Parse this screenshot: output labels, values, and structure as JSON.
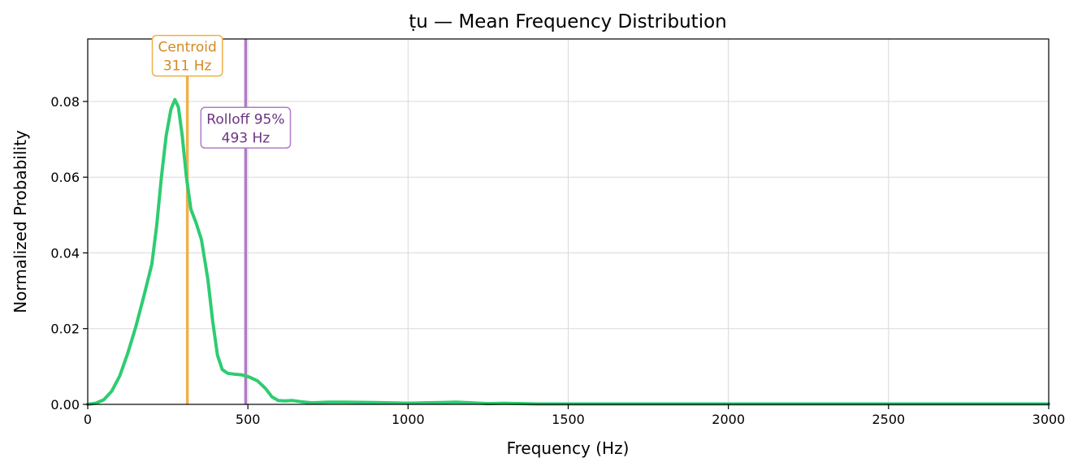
{
  "chart_data": {
    "type": "line",
    "title": "ṭu  —  Mean Frequency Distribution",
    "xlabel": "Frequency (Hz)",
    "ylabel": "Normalized Probability",
    "xlim": [
      0,
      3000
    ],
    "ylim": [
      0,
      0.0965
    ],
    "grid": true,
    "x_ticks": [
      0,
      500,
      1000,
      1500,
      2000,
      2500,
      3000
    ],
    "x_tick_labels": [
      "0",
      "500",
      "1000",
      "1500",
      "2000",
      "2500",
      "3000"
    ],
    "y_ticks": [
      0,
      0.02,
      0.04,
      0.06,
      0.08
    ],
    "y_tick_labels": [
      "0.00",
      "0.02",
      "0.04",
      "0.06",
      "0.08"
    ],
    "series": [
      {
        "color": "#2ecc71",
        "x": [
          0,
          25,
          50,
          75,
          100,
          125,
          150,
          175,
          200,
          215,
          230,
          245,
          260,
          272,
          283,
          295,
          308,
          322,
          338,
          355,
          375,
          390,
          405,
          420,
          437,
          455,
          480,
          505,
          530,
          555,
          575,
          595,
          615,
          640,
          665,
          700,
          750,
          800,
          900,
          1000,
          1050,
          1100,
          1150,
          1200,
          1250,
          1300,
          1400,
          1500,
          1600,
          2000,
          2500,
          3000
        ],
        "y": [
          0.0,
          0.0003,
          0.0012,
          0.0035,
          0.0075,
          0.0135,
          0.0205,
          0.0285,
          0.037,
          0.047,
          0.06,
          0.071,
          0.078,
          0.0805,
          0.0785,
          0.071,
          0.06,
          0.0515,
          0.048,
          0.0435,
          0.033,
          0.022,
          0.013,
          0.0092,
          0.0082,
          0.008,
          0.0078,
          0.0072,
          0.0062,
          0.0042,
          0.002,
          0.001,
          0.0009,
          0.001,
          0.0007,
          0.0004,
          0.0006,
          0.0006,
          0.0005,
          0.0003,
          0.0004,
          0.0005,
          0.0006,
          0.0004,
          0.0002,
          0.0003,
          0.0001,
          0.0001,
          0.0001,
          0.0001,
          0.0001,
          0.0001
        ]
      }
    ],
    "annotations": [
      {
        "name": "centroid",
        "x": 311,
        "line_color": "#f0b04a",
        "text_color": "#d4891f",
        "label_line1": "Centroid",
        "label_line2": "311 Hz",
        "label_y": 0.0925
      },
      {
        "name": "rolloff",
        "x": 493,
        "line_color": "#b07cc6",
        "text_color": "#6c3483",
        "label_line1": "Rolloff 95%",
        "label_line2": "493 Hz",
        "label_y": 0.0735
      }
    ]
  }
}
